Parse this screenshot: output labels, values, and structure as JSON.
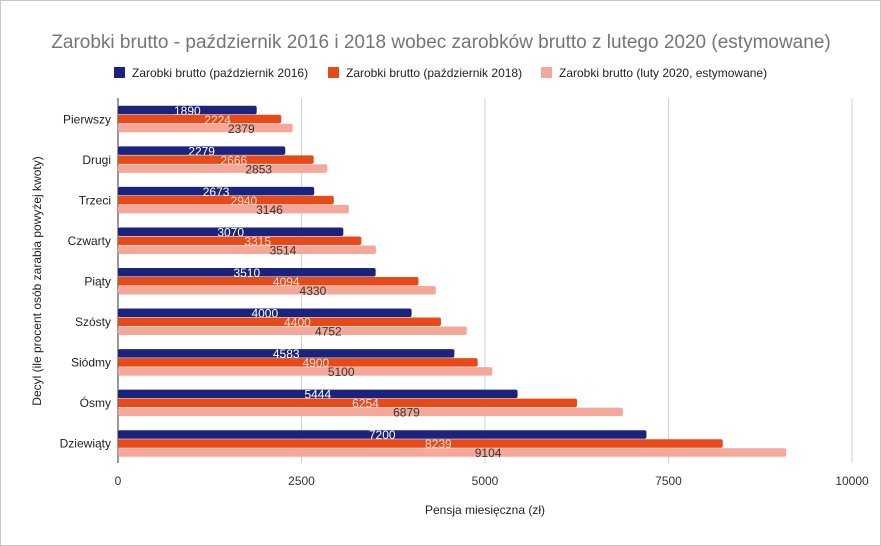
{
  "chart_data": {
    "type": "bar",
    "orientation": "horizontal",
    "title": "Zarobki brutto - październik 2016 i 2018 wobec zarobków brutto z lutego 2020 (estymowane)",
    "xlabel": "Pensja miesięczna (zł)",
    "ylabel": "Decyl (ile procent osób zarabia powyżej kwoty)",
    "xlim": [
      0,
      10000
    ],
    "xticks": [
      "0",
      "2500",
      "5000",
      "7500",
      "10000"
    ],
    "xtick_values": [
      0,
      2500,
      5000,
      7500,
      10000
    ],
    "grid": true,
    "legend_position": "top",
    "categories": [
      "Pierwszy",
      "Drugi",
      "Trzeci",
      "Czwarty",
      "Piąty",
      "Szósty",
      "Siódmy",
      "Ósmy",
      "Dziewiąty"
    ],
    "series": [
      {
        "name": "Zarobki brutto (październik 2016)",
        "color": "#1a237e",
        "label_color": "#ffffff",
        "values": [
          1890,
          2279,
          2673,
          3070,
          3510,
          4000,
          4583,
          5444,
          7200
        ]
      },
      {
        "name": "Zarobki brutto (październik 2018)",
        "color": "#e64a19",
        "label_color": "#ffe0d0",
        "values": [
          2224,
          2666,
          2940,
          3315,
          4094,
          4400,
          4900,
          6254,
          8239
        ]
      },
      {
        "name": "Zarobki brutto (luty 2020, estymowane)",
        "color": "#f4a89a",
        "label_color": "#333333",
        "values": [
          2379,
          2853,
          3146,
          3514,
          4330,
          4752,
          5100,
          6879,
          9104
        ]
      }
    ]
  }
}
